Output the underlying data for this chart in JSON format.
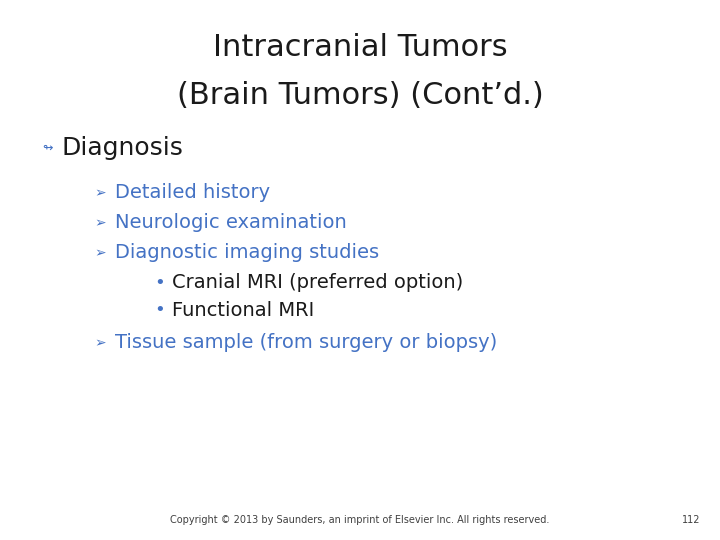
{
  "title_line1": "Intracranial Tumors",
  "title_line2": "(Brain Tumors) (Cont’d.)",
  "title_fontsize": 22,
  "title_color": "#1a1a1a",
  "background_color": "#ffffff",
  "bullet1_text": "Diagnosis",
  "bullet1_color": "#1a1a1a",
  "bullet1_fontsize": 18,
  "bullet1_marker_color": "#4472c4",
  "sub_bullet_color": "#4472c4",
  "sub_bullet_fontsize": 14,
  "sub_bullets": [
    "Detailed history",
    "Neurologic examination",
    "Diagnostic imaging studies"
  ],
  "sub_sub_bullets": [
    "Cranial MRI (preferred option)",
    "Functional MRI"
  ],
  "sub_sub_color": "#1a1a1a",
  "sub_sub_fontsize": 14,
  "last_sub_bullet": "Tissue sample (from surgery or biopsy)",
  "footer_text": "Copyright © 2013 by Saunders, an imprint of Elsevier Inc. All rights reserved.",
  "footer_page": "112",
  "footer_fontsize": 7,
  "footer_color": "#404040",
  "main_marker": "↲",
  "sub_marker": "➤",
  "subsub_marker": "•"
}
